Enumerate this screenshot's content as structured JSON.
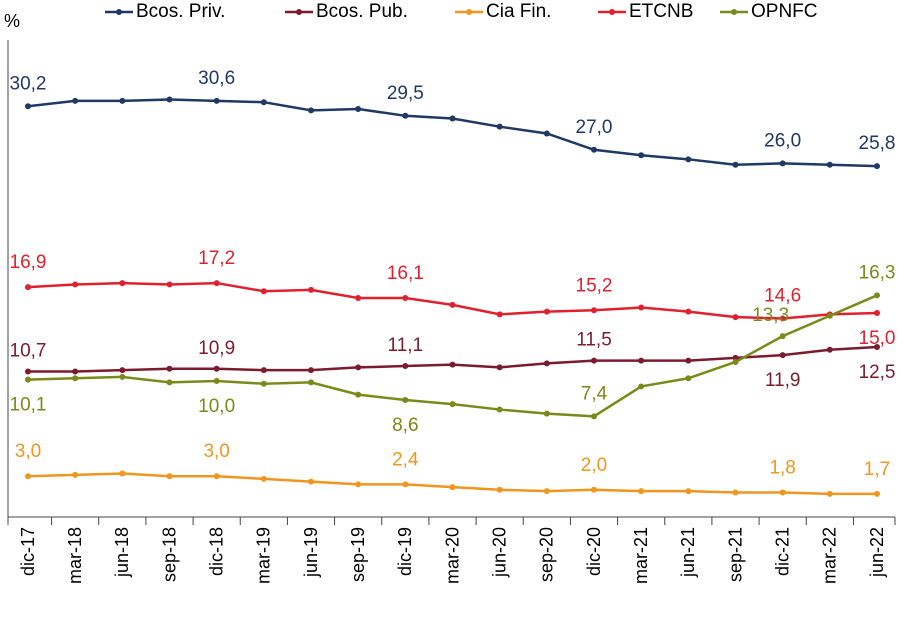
{
  "chart_data": {
    "type": "line",
    "y_label": "%",
    "categories": [
      "dic-17",
      "mar-18",
      "jun-18",
      "sep-18",
      "dic-18",
      "mar-19",
      "jun-19",
      "sep-19",
      "dic-19",
      "mar-20",
      "jun-20",
      "sep-20",
      "dic-20",
      "mar-21",
      "jun-21",
      "sep-21",
      "dic-21",
      "mar-22",
      "jun-22"
    ],
    "ylim": [
      0,
      37
    ],
    "series": [
      {
        "name": "Bcos. Priv.",
        "color": "#1f3864",
        "values": [
          30.2,
          30.6,
          30.6,
          30.7,
          30.6,
          30.5,
          29.9,
          30.0,
          29.5,
          29.3,
          28.7,
          28.2,
          27.0,
          26.6,
          26.3,
          25.9,
          26.0,
          25.9,
          25.8
        ],
        "value_labels": [
          "30,2",
          null,
          null,
          null,
          "30,6",
          null,
          null,
          null,
          "29,5",
          null,
          null,
          null,
          "27,0",
          null,
          null,
          null,
          "26,0",
          null,
          "25,8"
        ]
      },
      {
        "name": "Bcos. Pub.",
        "color": "#7b1c2e",
        "values": [
          10.7,
          10.7,
          10.8,
          10.9,
          10.9,
          10.8,
          10.8,
          11.0,
          11.1,
          11.2,
          11.0,
          11.3,
          11.5,
          11.5,
          11.5,
          11.7,
          11.9,
          12.3,
          12.5
        ],
        "value_labels": [
          "10,7",
          null,
          null,
          null,
          "10,9",
          null,
          null,
          null,
          "11,1",
          null,
          null,
          null,
          "11,5",
          null,
          null,
          null,
          "11,9",
          null,
          "12,5"
        ]
      },
      {
        "name": "Cia Fin.",
        "color": "#f0961e",
        "values": [
          3.0,
          3.1,
          3.2,
          3.0,
          3.0,
          2.8,
          2.6,
          2.4,
          2.4,
          2.2,
          2.0,
          1.9,
          2.0,
          1.9,
          1.9,
          1.8,
          1.8,
          1.7,
          1.7
        ],
        "value_labels": [
          "3,0",
          null,
          null,
          null,
          "3,0",
          null,
          null,
          null,
          "2,4",
          null,
          null,
          null,
          "2,0",
          null,
          null,
          null,
          "1,8",
          null,
          "1,7"
        ]
      },
      {
        "name": "ETCNB",
        "color": "#e0202e",
        "values": [
          16.9,
          17.1,
          17.2,
          17.1,
          17.2,
          16.6,
          16.7,
          16.1,
          16.1,
          15.6,
          14.9,
          15.1,
          15.2,
          15.4,
          15.1,
          14.7,
          14.6,
          14.9,
          15.0
        ],
        "value_labels": [
          "16,9",
          null,
          null,
          null,
          "17,2",
          null,
          null,
          null,
          "16,1",
          null,
          null,
          null,
          "15,2",
          null,
          null,
          null,
          "14,6",
          null,
          "15,0"
        ]
      },
      {
        "name": "OPNFC",
        "color": "#7a8a1a",
        "values": [
          10.1,
          10.2,
          10.3,
          9.9,
          10.0,
          9.8,
          9.9,
          9.0,
          8.6,
          8.3,
          7.9,
          7.6,
          7.4,
          9.6,
          10.2,
          11.4,
          13.3,
          14.8,
          16.3
        ],
        "value_labels": [
          "10,1",
          null,
          null,
          null,
          "10,0",
          null,
          null,
          null,
          "8,6",
          null,
          null,
          null,
          "7,4",
          null,
          null,
          null,
          "13,3",
          null,
          "16,3"
        ]
      }
    ]
  }
}
